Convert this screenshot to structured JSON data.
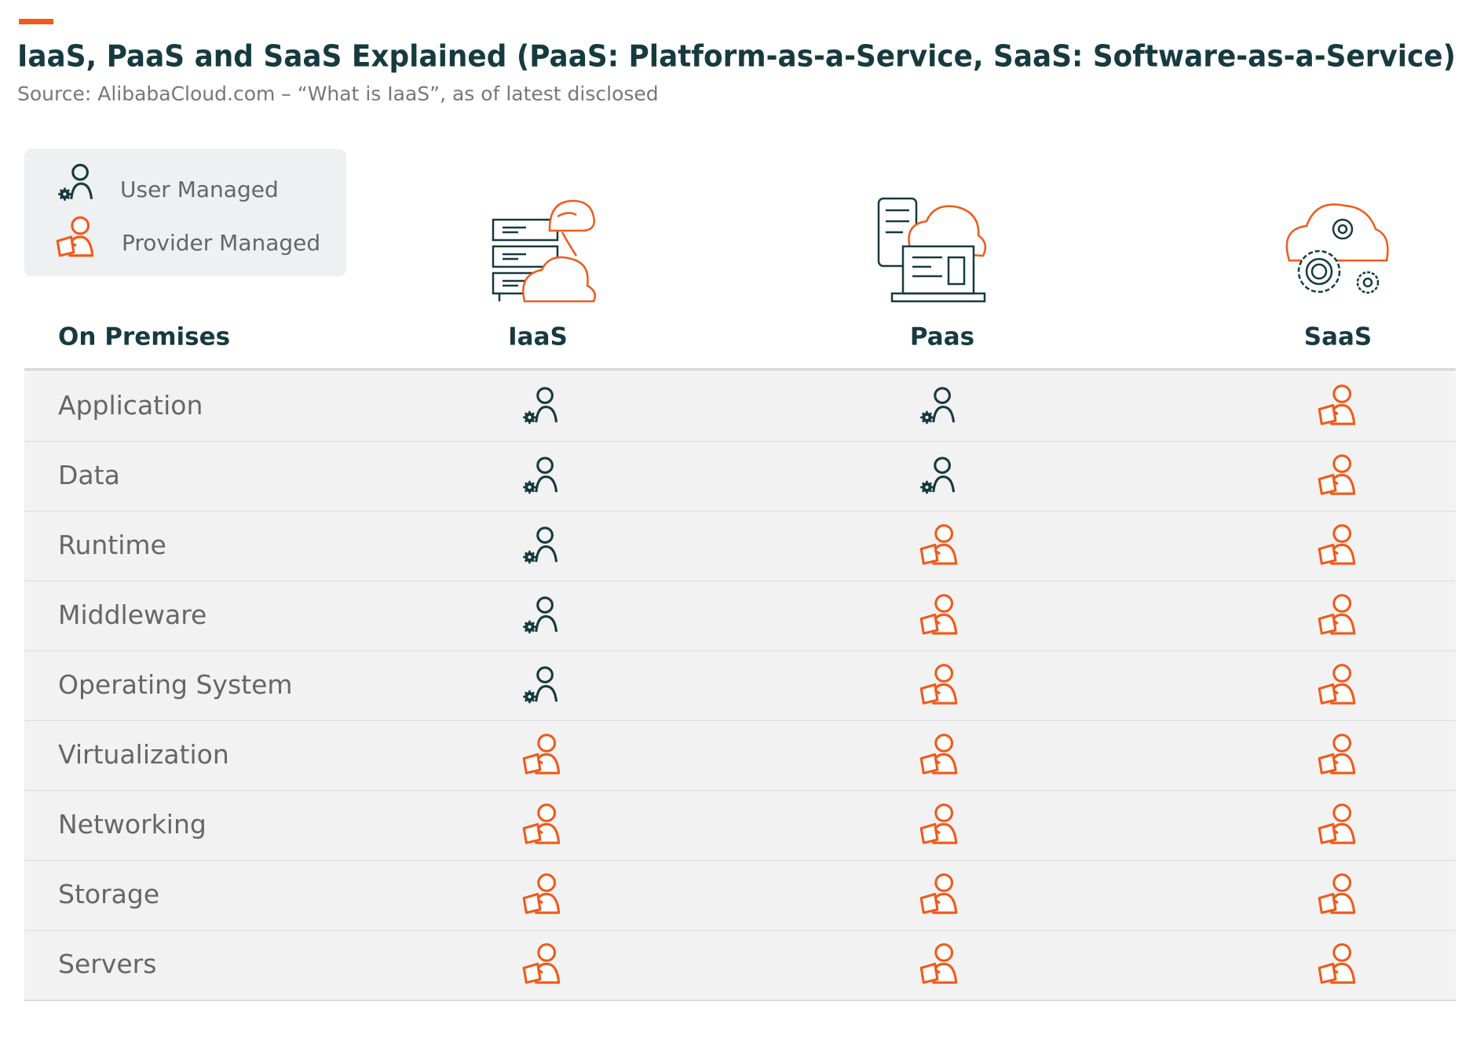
{
  "header": {
    "title": "IaaS, PaaS and SaaS Explained (PaaS: Platform-as-a-Service, SaaS: Software-as-a-Service)",
    "subtitle": "Source: AlibabaCloud.com – “What is IaaS”, as of latest disclosed"
  },
  "legend": [
    "User Managed",
    "Provider Managed"
  ],
  "table": {
    "corner": "On Premises",
    "columns": [
      "IaaS",
      "Paas",
      "SaaS"
    ],
    "rows": [
      {
        "label": "Application",
        "cells": [
          0,
          0,
          1
        ]
      },
      {
        "label": "Data",
        "cells": [
          0,
          0,
          1
        ]
      },
      {
        "label": "Runtime",
        "cells": [
          0,
          1,
          1
        ]
      },
      {
        "label": "Middleware",
        "cells": [
          0,
          1,
          1
        ]
      },
      {
        "label": "Operating System",
        "cells": [
          0,
          1,
          1
        ]
      },
      {
        "label": "Virtualization",
        "cells": [
          1,
          1,
          1
        ]
      },
      {
        "label": "Networking",
        "cells": [
          1,
          1,
          1
        ]
      },
      {
        "label": "Storage",
        "cells": [
          1,
          1,
          1
        ]
      },
      {
        "label": "Servers",
        "cells": [
          1,
          1,
          1
        ]
      }
    ]
  }
}
